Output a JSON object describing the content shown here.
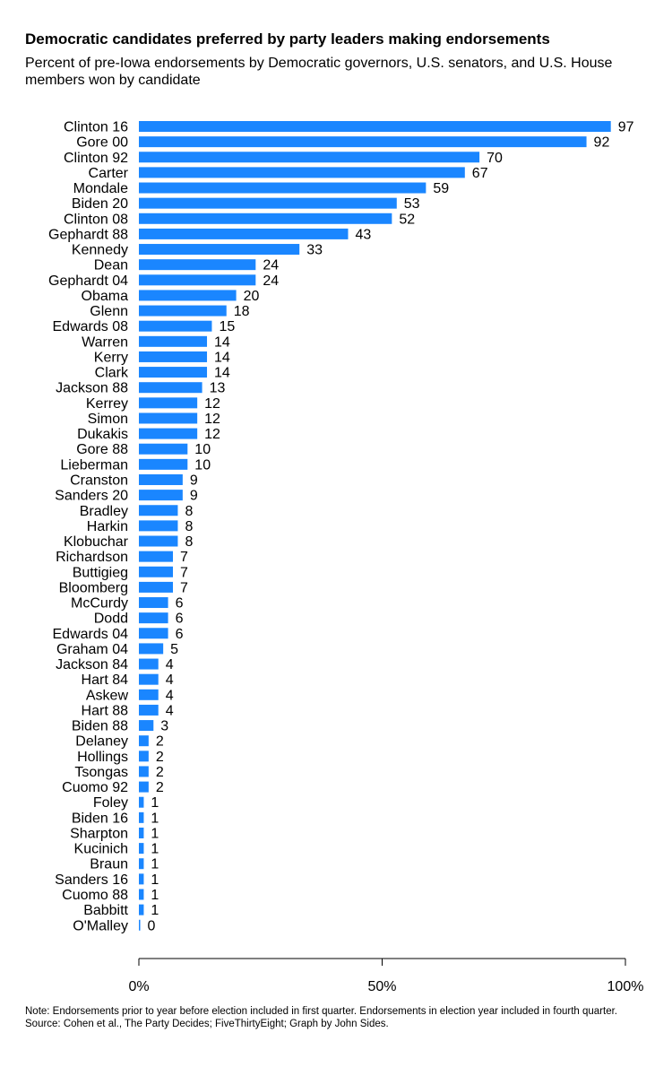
{
  "chart_data": {
    "type": "bar",
    "orientation": "horizontal",
    "title": "Democratic candidates preferred by party leaders making endorsements",
    "subtitle": "Percent of pre-Iowa endorsements by Democratic governors, U.S. senators, and U.S. House members won by candidate",
    "categories": [
      "Clinton 16",
      "Gore 00",
      "Clinton 92",
      "Carter",
      "Mondale",
      "Biden 20",
      "Clinton 08",
      "Gephardt 88",
      "Kennedy",
      "Dean",
      "Gephardt 04",
      "Obama",
      "Glenn",
      "Edwards 08",
      "Warren",
      "Kerry",
      "Clark",
      "Jackson 88",
      "Kerrey",
      "Simon",
      "Dukakis",
      "Gore 88",
      "Lieberman",
      "Cranston",
      "Sanders 20",
      "Bradley",
      "Harkin",
      "Klobuchar",
      "Richardson",
      "Buttigieg",
      "Bloomberg",
      "McCurdy",
      "Dodd",
      "Edwards 04",
      "Graham 04",
      "Jackson 84",
      "Hart 84",
      "Askew",
      "Hart 88",
      "Biden 88",
      "Delaney",
      "Hollings",
      "Tsongas",
      "Cuomo 92",
      "Foley",
      "Biden 16",
      "Sharpton",
      "Kucinich",
      "Braun",
      "Sanders 16",
      "Cuomo 88",
      "Babbitt",
      "O'Malley"
    ],
    "values": [
      97,
      92,
      70,
      67,
      59,
      53,
      52,
      43,
      33,
      24,
      24,
      20,
      18,
      15,
      14,
      14,
      14,
      13,
      12,
      12,
      12,
      10,
      10,
      9,
      9,
      8,
      8,
      8,
      7,
      7,
      7,
      6,
      6,
      6,
      5,
      4,
      4,
      4,
      4,
      3,
      2,
      2,
      2,
      2,
      1,
      1,
      1,
      1,
      1,
      1,
      1,
      1,
      0
    ],
    "labels": [
      "97",
      "92",
      "70",
      "67",
      "59",
      "53",
      "52",
      "43",
      "33",
      "24",
      "24",
      "20",
      "18",
      "15",
      "14",
      "14",
      "14",
      "13",
      "12",
      "12",
      "12",
      "10",
      "10",
      "9",
      "9",
      "8",
      "8",
      "8",
      "7",
      "7",
      "7",
      "6",
      "6",
      "6",
      "5",
      "4",
      "4",
      "4",
      "4",
      "3",
      "2",
      "2",
      "2",
      "2",
      "1",
      "1",
      "1",
      "1",
      "1",
      "1",
      "1",
      "1",
      "0"
    ],
    "xlim": [
      0,
      100
    ],
    "xticks": [
      0,
      50,
      100
    ],
    "xtick_labels": [
      "0%",
      "50%",
      "100%"
    ],
    "xlabel": "",
    "ylabel": "",
    "bar_color": "#1a86ff"
  },
  "note": {
    "line1": "Note: Endorsements prior to year before election included in first quarter. Endorsements in election year included in fourth quarter.",
    "line2": "Source: Cohen et al., The Party Decides; FiveThirtyEight; Graph by John Sides."
  }
}
